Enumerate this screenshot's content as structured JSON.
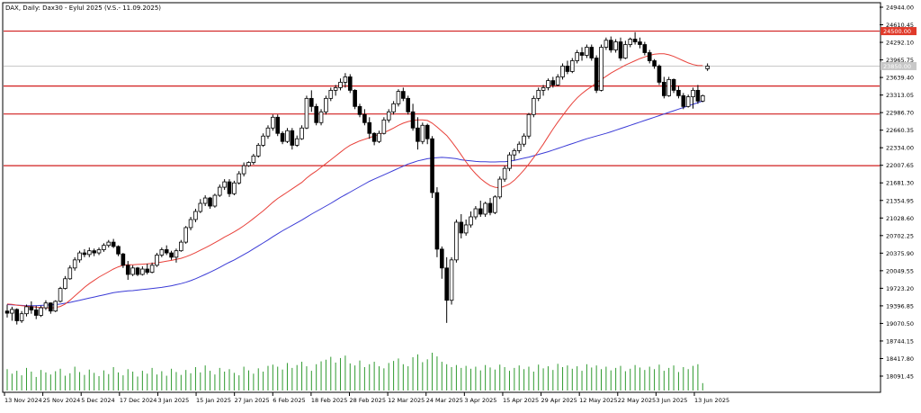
{
  "header": {
    "title": "DAX, Daily:  Dax30 - Eylul 2025 (V.S.- 11.09.2025)"
  },
  "colors": {
    "bull": "#ffffff",
    "bear": "#000000",
    "candle_outline": "#000000",
    "ma_fast": "#e8413a",
    "ma_slow": "#3b3bd6",
    "level": "#d11f1f",
    "volume": "#2f9a2f",
    "price_label_bg": "#e03a2a"
  },
  "chart_data": {
    "type": "candlestick",
    "title": "DAX, Daily:  Dax30 - Eylul 2025 (V.S.- 11.09.2025)",
    "y_ticks": [
      "24944.00",
      "24610.45",
      "24292.10",
      "23965.75",
      "23639.40",
      "23313.05",
      "22986.70",
      "22660.35",
      "22334.00",
      "22007.65",
      "21681.30",
      "21354.95",
      "21028.60",
      "20702.25",
      "20375.90",
      "20049.55",
      "19723.20",
      "19396.85",
      "19070.50",
      "18744.15",
      "18417.80",
      "18091.45"
    ],
    "x_tick_labels": [
      "13 Nov 2024",
      "25 Nov 2024",
      "5 Dec 2024",
      "17 Dec 2024",
      "3 Jan 2025",
      "15 Jan 2025",
      "27 Jan 2025",
      "6 Feb 2025",
      "18 Feb 2025",
      "28 Feb 2025",
      "12 Mar 2025",
      "24 Mar 2025",
      "3 Apr 2025",
      "15 Apr 2025",
      "29 Apr 2025",
      "12 May 2025",
      "22 May 2025",
      "3 Jun 2025",
      "13 Jun 2025"
    ],
    "ylim": [
      18000,
      25000
    ],
    "horizontal_levels": [
      {
        "value": 24500.0,
        "label": "24500.00"
      },
      {
        "value": 23480
      },
      {
        "value": 22960
      },
      {
        "value": 22000
      }
    ],
    "current_price": {
      "value": 23850,
      "label": "23850.00"
    },
    "candles": [
      [
        19300,
        19420,
        19180,
        19260
      ],
      [
        19260,
        19380,
        19120,
        19330
      ],
      [
        19330,
        19350,
        19050,
        19120
      ],
      [
        19120,
        19300,
        19080,
        19250
      ],
      [
        19250,
        19420,
        19200,
        19380
      ],
      [
        19380,
        19480,
        19250,
        19320
      ],
      [
        19320,
        19400,
        19150,
        19220
      ],
      [
        19220,
        19400,
        19190,
        19360
      ],
      [
        19360,
        19500,
        19320,
        19450
      ],
      [
        19450,
        19460,
        19250,
        19300
      ],
      [
        19300,
        19500,
        19280,
        19480
      ],
      [
        19480,
        19750,
        19460,
        19720
      ],
      [
        19720,
        19950,
        19700,
        19900
      ],
      [
        19900,
        20150,
        19880,
        20100
      ],
      [
        20100,
        20300,
        20050,
        20250
      ],
      [
        20250,
        20420,
        20200,
        20380
      ],
      [
        20380,
        20450,
        20300,
        20350
      ],
      [
        20350,
        20480,
        20300,
        20420
      ],
      [
        20420,
        20460,
        20320,
        20380
      ],
      [
        20380,
        20480,
        20340,
        20440
      ],
      [
        20440,
        20560,
        20400,
        20520
      ],
      [
        20520,
        20620,
        20480,
        20580
      ],
      [
        20580,
        20640,
        20470,
        20500
      ],
      [
        20500,
        20520,
        20320,
        20360
      ],
      [
        20360,
        20380,
        20100,
        20150
      ],
      [
        20150,
        20230,
        19880,
        19980
      ],
      [
        19980,
        20150,
        19950,
        20100
      ],
      [
        20100,
        20120,
        19950,
        19980
      ],
      [
        19980,
        20130,
        19960,
        20080
      ],
      [
        20080,
        20180,
        19980,
        20020
      ],
      [
        20020,
        20200,
        20000,
        20150
      ],
      [
        20150,
        20380,
        20120,
        20340
      ],
      [
        20340,
        20480,
        20300,
        20440
      ],
      [
        20440,
        20520,
        20340,
        20380
      ],
      [
        20380,
        20420,
        20250,
        20300
      ],
      [
        20300,
        20460,
        20200,
        20420
      ],
      [
        20420,
        20620,
        20400,
        20580
      ],
      [
        20580,
        20880,
        20550,
        20850
      ],
      [
        20850,
        21050,
        20800,
        21000
      ],
      [
        21000,
        21200,
        20950,
        21150
      ],
      [
        21150,
        21380,
        21120,
        21300
      ],
      [
        21300,
        21450,
        21250,
        21400
      ],
      [
        21400,
        21420,
        21200,
        21250
      ],
      [
        21250,
        21480,
        21220,
        21450
      ],
      [
        21450,
        21650,
        21420,
        21600
      ],
      [
        21600,
        21750,
        21550,
        21700
      ],
      [
        21700,
        21750,
        21420,
        21480
      ],
      [
        21480,
        21720,
        21450,
        21680
      ],
      [
        21680,
        21900,
        21650,
        21850
      ],
      [
        21850,
        22060,
        21800,
        22000
      ],
      [
        22000,
        22080,
        21980,
        22060
      ],
      [
        22060,
        22220,
        22020,
        22180
      ],
      [
        22180,
        22420,
        22150,
        22380
      ],
      [
        22380,
        22600,
        22350,
        22550
      ],
      [
        22550,
        22750,
        22500,
        22700
      ],
      [
        22700,
        22950,
        22650,
        22900
      ],
      [
        22900,
        22950,
        22550,
        22600
      ],
      [
        22600,
        22640,
        22400,
        22450
      ],
      [
        22450,
        22700,
        22420,
        22650
      ],
      [
        22650,
        22700,
        22300,
        22380
      ],
      [
        22380,
        22560,
        22350,
        22500
      ],
      [
        22500,
        22750,
        22480,
        22700
      ],
      [
        22700,
        23300,
        22680,
        23250
      ],
      [
        23250,
        23400,
        23000,
        23100
      ],
      [
        23100,
        23150,
        22750,
        22800
      ],
      [
        22800,
        23050,
        22750,
        23000
      ],
      [
        23000,
        23300,
        22950,
        23250
      ],
      [
        23250,
        23450,
        23200,
        23400
      ],
      [
        23400,
        23500,
        23300,
        23450
      ],
      [
        23450,
        23620,
        23400,
        23550
      ],
      [
        23550,
        23720,
        23450,
        23650
      ],
      [
        23650,
        23700,
        23350,
        23400
      ],
      [
        23400,
        23420,
        23050,
        23100
      ],
      [
        23100,
        23150,
        22900,
        22950
      ],
      [
        22950,
        23050,
        22750,
        22800
      ],
      [
        22800,
        22900,
        22500,
        22600
      ],
      [
        22600,
        22620,
        22380,
        22450
      ],
      [
        22450,
        22650,
        22420,
        22600
      ],
      [
        22600,
        22900,
        22580,
        22850
      ],
      [
        22850,
        23050,
        22800,
        23000
      ],
      [
        23000,
        23200,
        22950,
        23150
      ],
      [
        23150,
        23420,
        23100,
        23380
      ],
      [
        23380,
        23450,
        23200,
        23250
      ],
      [
        23250,
        23300,
        22950,
        23000
      ],
      [
        23000,
        23150,
        22650,
        22700
      ],
      [
        22700,
        22900,
        22300,
        22450
      ],
      [
        22450,
        22800,
        22400,
        22750
      ],
      [
        22750,
        22780,
        22400,
        22500
      ],
      [
        22500,
        22550,
        21400,
        21500
      ],
      [
        21500,
        21600,
        20300,
        20450
      ],
      [
        20450,
        20500,
        19900,
        20100
      ],
      [
        20100,
        20300,
        19080,
        19500
      ],
      [
        19500,
        20300,
        19420,
        20250
      ],
      [
        20250,
        21000,
        20200,
        20950
      ],
      [
        20950,
        21100,
        20650,
        20750
      ],
      [
        20750,
        21000,
        20700,
        20900
      ],
      [
        20900,
        21150,
        20850,
        21050
      ],
      [
        21050,
        21250,
        21000,
        21200
      ],
      [
        21200,
        21350,
        21050,
        21100
      ],
      [
        21100,
        21330,
        21050,
        21300
      ],
      [
        21300,
        21400,
        21080,
        21130
      ],
      [
        21130,
        21450,
        21100,
        21420
      ],
      [
        21420,
        21800,
        21380,
        21750
      ],
      [
        21750,
        22000,
        21700,
        21950
      ],
      [
        21950,
        22250,
        21900,
        22200
      ],
      [
        22200,
        22320,
        22100,
        22280
      ],
      [
        22280,
        22450,
        22230,
        22400
      ],
      [
        22400,
        22600,
        22350,
        22550
      ],
      [
        22550,
        22980,
        22500,
        22950
      ],
      [
        22950,
        23300,
        22900,
        23250
      ],
      [
        23250,
        23450,
        23200,
        23400
      ],
      [
        23400,
        23500,
        23300,
        23450
      ],
      [
        23450,
        23620,
        23400,
        23580
      ],
      [
        23580,
        23650,
        23450,
        23500
      ],
      [
        23500,
        23700,
        23480,
        23650
      ],
      [
        23650,
        23900,
        23600,
        23850
      ],
      [
        23850,
        23950,
        23700,
        23750
      ],
      [
        23750,
        24000,
        23720,
        23950
      ],
      [
        23950,
        24150,
        23900,
        24100
      ],
      [
        24100,
        24200,
        23950,
        24050
      ],
      [
        24050,
        24250,
        24000,
        24200
      ],
      [
        24200,
        24250,
        23950,
        24000
      ],
      [
        24000,
        24050,
        23350,
        23400
      ],
      [
        23400,
        24250,
        23380,
        24200
      ],
      [
        24200,
        24380,
        24150,
        24330
      ],
      [
        24330,
        24400,
        24100,
        24150
      ],
      [
        24150,
        24350,
        24100,
        24300
      ],
      [
        24300,
        24380,
        23950,
        24000
      ],
      [
        24000,
        24320,
        23980,
        24250
      ],
      [
        24250,
        24380,
        24200,
        24350
      ],
      [
        24350,
        24480,
        24250,
        24300
      ],
      [
        24300,
        24380,
        24180,
        24250
      ],
      [
        24250,
        24300,
        24050,
        24100
      ],
      [
        24100,
        24150,
        23900,
        23950
      ],
      [
        23950,
        23980,
        23800,
        23850
      ],
      [
        23850,
        23880,
        23500,
        23550
      ],
      [
        23550,
        23650,
        23250,
        23300
      ],
      [
        23300,
        23650,
        23280,
        23600
      ],
      [
        23600,
        23620,
        23350,
        23400
      ],
      [
        23400,
        23480,
        23250,
        23300
      ],
      [
        23300,
        23350,
        23050,
        23100
      ],
      [
        23100,
        23320,
        23080,
        23280
      ],
      [
        23280,
        23450,
        23060,
        23400
      ],
      [
        23400,
        23500,
        23150,
        23200
      ],
      [
        23200,
        23320,
        23180,
        23300
      ],
      [
        23800,
        23900,
        23760,
        23850
      ]
    ],
    "ma_fast": [
      19430,
      19425,
      19410,
      19400,
      19390,
      19385,
      19370,
      19365,
      19360,
      19355,
      19365,
      19385,
      19430,
      19500,
      19580,
      19660,
      19740,
      19810,
      19870,
      19930,
      19980,
      20030,
      20080,
      20120,
      20150,
      20160,
      20160,
      20165,
      20170,
      20175,
      20185,
      20195,
      20210,
      20225,
      20240,
      20260,
      20280,
      20310,
      20345,
      20385,
      20430,
      20475,
      20520,
      20570,
      20620,
      20675,
      20720,
      20770,
      20825,
      20885,
      20950,
      21020,
      21090,
      21160,
      21240,
      21320,
      21390,
      21450,
      21510,
      21570,
      21630,
      21690,
      21770,
      21840,
      21900,
      21970,
      22040,
      22110,
      22180,
      22250,
      22320,
      22380,
      22420,
      22460,
      22490,
      22520,
      22550,
      22580,
      22615,
      22655,
      22700,
      22750,
      22790,
      22820,
      22840,
      22850,
      22850,
      22840,
      22790,
      22720,
      22640,
      22560,
      22450,
      22330,
      22200,
      22070,
      21950,
      21850,
      21760,
      21690,
      21630,
      21600,
      21590,
      21620,
      21660,
      21730,
      21820,
      21920,
      22030,
      22150,
      22270,
      22400,
      22540,
      22680,
      22810,
      22930,
      23050,
      23160,
      23260,
      23340,
      23410,
      23470,
      23540,
      23600,
      23660,
      23720,
      23770,
      23820,
      23870,
      23910,
      23950,
      23990,
      24020,
      24050,
      24070,
      24080,
      24080,
      24060,
      24030,
      23990,
      23950,
      23910,
      23880,
      23860,
      23860
    ],
    "ma_slow": [
      19420,
      19415,
      19410,
      19405,
      19400,
      19400,
      19400,
      19405,
      19410,
      19415,
      19420,
      19430,
      19445,
      19460,
      19480,
      19500,
      19520,
      19540,
      19560,
      19580,
      19600,
      19620,
      19640,
      19655,
      19665,
      19675,
      19680,
      19690,
      19700,
      19710,
      19720,
      19730,
      19740,
      19755,
      19770,
      19790,
      19810,
      19835,
      19865,
      19900,
      19940,
      19980,
      20020,
      20065,
      20110,
      20160,
      20205,
      20250,
      20300,
      20350,
      20400,
      20455,
      20510,
      20565,
      20620,
      20680,
      20735,
      20790,
      20840,
      20890,
      20940,
      20990,
      21045,
      21100,
      21150,
      21200,
      21250,
      21300,
      21355,
      21410,
      21460,
      21510,
      21560,
      21610,
      21660,
      21710,
      21750,
      21790,
      21830,
      21870,
      21910,
      21950,
      21990,
      22030,
      22060,
      22090,
      22110,
      22130,
      22140,
      22150,
      22155,
      22150,
      22140,
      22130,
      22110,
      22100,
      22090,
      22080,
      22075,
      22072,
      22070,
      22070,
      22072,
      22075,
      22085,
      22100,
      22120,
      22140,
      22160,
      22185,
      22210,
      22235,
      22260,
      22290,
      22320,
      22350,
      22380,
      22410,
      22440,
      22470,
      22500,
      22525,
      22550,
      22575,
      22600,
      22630,
      22660,
      22690,
      22720,
      22750,
      22780,
      22810,
      22840,
      22870,
      22900,
      22930,
      22960,
      22990,
      23020,
      23050,
      23080,
      23110,
      23140,
      23170,
      23200
    ],
    "volume": [
      52,
      41,
      48,
      37,
      55,
      46,
      33,
      50,
      44,
      39,
      47,
      53,
      36,
      42,
      58,
      45,
      38,
      51,
      43,
      35,
      49,
      40,
      57,
      44,
      37,
      52,
      46,
      34,
      48,
      41,
      55,
      39,
      47,
      36,
      53,
      45,
      38,
      50,
      42,
      57,
      44,
      61,
      48,
      39,
      55,
      46,
      52,
      43,
      37,
      58,
      49,
      41,
      54,
      46,
      60,
      63,
      58,
      51,
      67,
      55,
      62,
      70,
      59,
      48,
      64,
      71,
      75,
      82,
      68,
      79,
      85,
      66,
      61,
      73,
      57,
      64,
      70,
      59,
      54,
      67,
      72,
      78,
      64,
      59,
      81,
      88,
      69,
      76,
      92,
      83,
      70,
      64,
      57,
      62,
      55,
      60,
      53,
      58,
      49,
      62,
      56,
      51,
      63,
      57,
      48,
      55,
      61,
      52,
      58,
      46,
      63,
      54,
      59,
      50,
      65,
      57,
      61,
      53,
      59,
      48,
      64,
      56,
      61,
      52,
      58,
      49,
      55,
      60,
      47,
      53,
      62,
      56,
      50,
      58,
      52,
      63,
      48,
      55,
      61,
      45,
      57,
      52,
      60,
      64,
      18
    ]
  }
}
